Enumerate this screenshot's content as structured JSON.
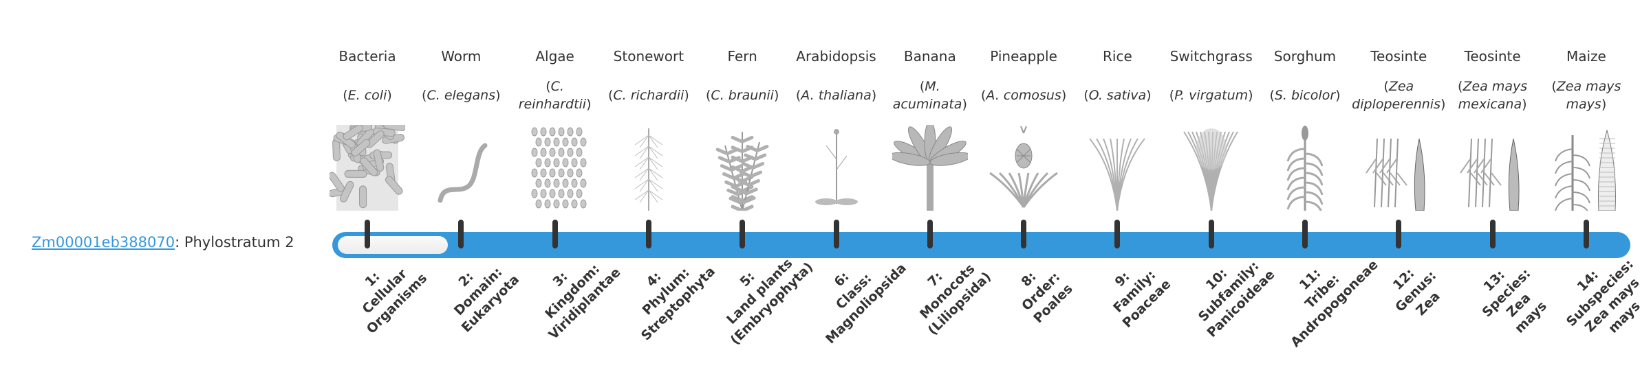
{
  "gene": {
    "id": "Zm00001eb388070",
    "suffix": ": Phylostratum 2"
  },
  "phylostratum": 2,
  "colors": {
    "bar": "#3598db",
    "tick": "#333333",
    "link": "#3498db"
  },
  "organisms": [
    {
      "common": "Bacteria",
      "sci": "E. coli",
      "icon": "bacteria-icon"
    },
    {
      "common": "Worm",
      "sci": "C. elegans",
      "icon": "worm-icon"
    },
    {
      "common": "Algae",
      "sci": "C. reinhardtii",
      "icon": "algae-icon"
    },
    {
      "common": "Stonewort",
      "sci": "C. richardii",
      "icon": "stonewort-icon"
    },
    {
      "common": "Fern",
      "sci": "C. braunii",
      "icon": "fern-icon"
    },
    {
      "common": "Arabidopsis",
      "sci": "A. thaliana",
      "icon": "arabidopsis-icon"
    },
    {
      "common": "Banana",
      "sci": "M. acuminata",
      "icon": "banana-icon"
    },
    {
      "common": "Pineapple",
      "sci": "A. comosus",
      "icon": "pineapple-icon"
    },
    {
      "common": "Rice",
      "sci": "O. sativa",
      "icon": "rice-icon"
    },
    {
      "common": "Switchgrass",
      "sci": "P. virgatum",
      "icon": "switchgrass-icon"
    },
    {
      "common": "Sorghum",
      "sci": "S. bicolor",
      "icon": "sorghum-icon"
    },
    {
      "common": "Teosinte",
      "sci": "Zea diploperennis",
      "icon": "teosinte-icon"
    },
    {
      "common": "Teosinte",
      "sci": "Zea mays mexicana",
      "icon": "teosinte-icon"
    },
    {
      "common": "Maize",
      "sci": "Zea mays mays",
      "icon": "maize-icon"
    }
  ],
  "strata": [
    [
      "1:",
      "Cellular",
      "Organisms"
    ],
    [
      "2:",
      "Domain:",
      "Eukaryota"
    ],
    [
      "3:",
      "Kingdom:",
      "Viridiplantae"
    ],
    [
      "4:",
      "Phylum:",
      "Streptophyta"
    ],
    [
      "5:",
      "Land plants",
      "(Embryophyta)"
    ],
    [
      "6:",
      "Class:",
      "Magnoliopsida"
    ],
    [
      "7:",
      "Monocots",
      "(Liliopsida)"
    ],
    [
      "8:",
      "Order:",
      "Poales"
    ],
    [
      "9:",
      "Family:",
      "Poaceae"
    ],
    [
      "10:",
      "Subfamily:",
      "Panicoideae"
    ],
    [
      "11:",
      "Tribe:",
      "Andropogoneae"
    ],
    [
      "12:",
      "Genus:",
      "Zea"
    ],
    [
      "13:",
      "Species:",
      "Zea",
      "mays"
    ],
    [
      "14:",
      "Subspecies:",
      "Zea mays",
      "mays"
    ]
  ]
}
